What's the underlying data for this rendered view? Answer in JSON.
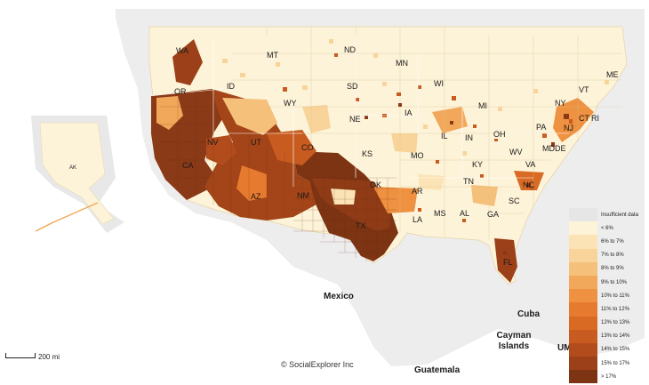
{
  "map": {
    "states": [
      "WA",
      "MT",
      "ND",
      "MN",
      "ME",
      "OR",
      "ID",
      "SD",
      "WI",
      "VT",
      "WY",
      "MI",
      "NY",
      "NE",
      "IA",
      "PA",
      "CT",
      "RI",
      "NV",
      "UT",
      "CO",
      "IL",
      "IN",
      "OH",
      "NJ",
      "DE",
      "CA",
      "KS",
      "MO",
      "KY",
      "WV",
      "VA",
      "MD",
      "AZ",
      "NM",
      "OK",
      "TN",
      "NC",
      "AR",
      "SC",
      "MS",
      "AL",
      "GA",
      "LA",
      "TX",
      "FL",
      "AK"
    ],
    "places": [
      "Mexico",
      "Cuba",
      "Cayman Islands",
      "Guatemala",
      "UM"
    ],
    "credit": "© SocialExplorer Inc",
    "scale_label": "200 mi"
  },
  "legend": {
    "items": [
      {
        "label": "Insufficient data",
        "color": "#e6e6e6"
      },
      {
        "label": "< 6%",
        "color": "#fdf3d8"
      },
      {
        "label": "6% to 7%",
        "color": "#fbe3b6"
      },
      {
        "label": "7% to 8%",
        "color": "#f8d49a"
      },
      {
        "label": "8% to 9%",
        "color": "#f5c07a"
      },
      {
        "label": "9% to 10%",
        "color": "#f2a85a"
      },
      {
        "label": "10% to 11%",
        "color": "#ee9140"
      },
      {
        "label": "11% to 12%",
        "color": "#e67a2e"
      },
      {
        "label": "12% to 13%",
        "color": "#d96a24"
      },
      {
        "label": "13% to 14%",
        "color": "#c85b20"
      },
      {
        "label": "14% to 15%",
        "color": "#b34c1c"
      },
      {
        "label": "15% to 17%",
        "color": "#9c4019"
      },
      {
        "label": "> 17%",
        "color": "#7d3413"
      }
    ]
  }
}
